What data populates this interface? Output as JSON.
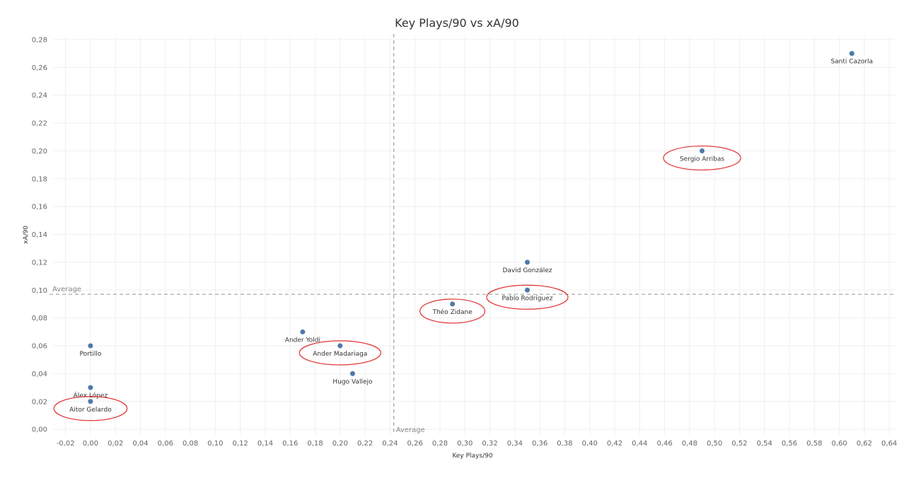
{
  "chart_data": {
    "type": "scatter",
    "title": "Key Plays/90 vs xA/90",
    "xlabel": "Key Plays/90",
    "ylabel": "xA/90",
    "xlim": [
      -0.03,
      0.645
    ],
    "ylim": [
      -0.004,
      0.282
    ],
    "xticks": [
      "-0,02",
      "0,00",
      "0,02",
      "0,04",
      "0,06",
      "0,08",
      "0,10",
      "0,12",
      "0,14",
      "0,16",
      "0,18",
      "0,20",
      "0,22",
      "0,24",
      "0,26",
      "0,28",
      "0,30",
      "0,32",
      "0,34",
      "0,36",
      "0,38",
      "0,40",
      "0,42",
      "0,44",
      "0,46",
      "0,48",
      "0,50",
      "0,52",
      "0,54",
      "0,56",
      "0,58",
      "0,60",
      "0,62",
      "0,64"
    ],
    "yticks": [
      "0,00",
      "0,02",
      "0,04",
      "0,06",
      "0,08",
      "0,10",
      "0,12",
      "0,14",
      "0,16",
      "0,18",
      "0,20",
      "0,22",
      "0,24",
      "0,26",
      "0,28"
    ],
    "grid": true,
    "marker_color": "#4e79a7",
    "highlight_color": "#e03030",
    "reference_lines": [
      {
        "axis": "x",
        "value": 0.243,
        "label": "Average"
      },
      {
        "axis": "y",
        "value": 0.097,
        "label": "Average"
      }
    ],
    "points": [
      {
        "name": "Santi Cazorla",
        "x": 0.61,
        "y": 0.27,
        "highlight": false
      },
      {
        "name": "Sergio Arribas",
        "x": 0.49,
        "y": 0.2,
        "highlight": true
      },
      {
        "name": "David González",
        "x": 0.35,
        "y": 0.12,
        "highlight": false
      },
      {
        "name": "Pablo Rodríguez",
        "x": 0.35,
        "y": 0.1,
        "highlight": true
      },
      {
        "name": "Théo Zidane",
        "x": 0.29,
        "y": 0.09,
        "highlight": true
      },
      {
        "name": "Ander Yoldi",
        "x": 0.17,
        "y": 0.07,
        "highlight": false
      },
      {
        "name": "Ander Madariaga",
        "x": 0.2,
        "y": 0.06,
        "highlight": true
      },
      {
        "name": "Hugo Vallejo",
        "x": 0.21,
        "y": 0.04,
        "highlight": false
      },
      {
        "name": "Portillo",
        "x": 0.0,
        "y": 0.06,
        "highlight": false
      },
      {
        "name": "Álex López",
        "x": 0.0,
        "y": 0.03,
        "highlight": false
      },
      {
        "name": "Aitor Gelardo",
        "x": 0.0,
        "y": 0.02,
        "highlight": true
      }
    ]
  }
}
